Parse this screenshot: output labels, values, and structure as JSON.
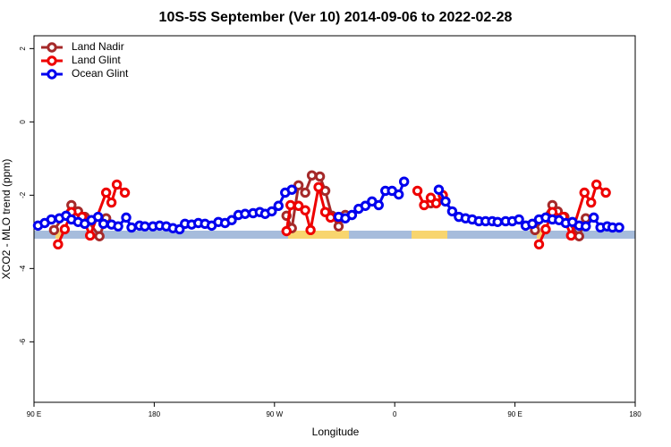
{
  "chart_data": {
    "type": "line",
    "title": "10S-5S September (Ver 10)   2014-09-06 to 2022-02-28",
    "x_label": "Longitude",
    "y_label": "XCO2 - MLO trend (ppm)",
    "xlim": [
      90,
      540
    ],
    "xticks": [
      {
        "value": 90,
        "label": "90 E"
      },
      180,
      {
        "value": 270,
        "label": "90 W"
      },
      {
        "value": 360,
        "label": "0"
      },
      {
        "value": 450,
        "label": "90 E"
      },
      {
        "value": 540,
        "label": "180"
      }
    ],
    "ylim": [
      -7.65,
      2.35
    ],
    "yticks": [
      2,
      0,
      -2,
      -4,
      -6
    ],
    "legend": "top-left",
    "series": [
      {
        "name": "Land Nadir",
        "color": "#a52a2a",
        "x": [
          105,
          118,
          123,
          128,
          139,
          144,
          null,
          279,
          283,
          288,
          293,
          298,
          304,
          308,
          313,
          318,
          323,
          null,
          387,
          null,
          465,
          478,
          482,
          487,
          498,
          503
        ],
        "values": [
          -2.95,
          -2.27,
          -2.44,
          -2.59,
          -3.12,
          -2.63,
          null,
          -2.56,
          -2.9,
          -1.73,
          -1.93,
          -1.46,
          -1.49,
          -1.88,
          -2.56,
          -2.85,
          -2.54,
          null,
          -2.22,
          null,
          -2.95,
          -2.27,
          -2.44,
          -2.59,
          -3.12,
          -2.63
        ]
      },
      {
        "name": "Land Glint",
        "color": "#ee0000",
        "x": [
          108,
          113,
          118,
          126,
          132,
          144,
          148,
          152,
          158,
          null,
          279,
          282,
          288,
          293,
          297,
          303,
          308,
          312,
          318,
          null,
          377,
          382,
          387,
          391,
          396,
          null,
          468,
          473,
          478,
          486,
          492,
          502,
          507,
          511,
          518
        ],
        "values": [
          -3.34,
          -2.93,
          -2.46,
          -2.59,
          -3.1,
          -1.93,
          -2.2,
          -1.71,
          -1.93,
          null,
          -2.98,
          -2.27,
          -2.29,
          -2.41,
          -2.95,
          -1.78,
          -2.46,
          -2.61,
          -2.61,
          null,
          -1.88,
          -2.27,
          -2.07,
          -2.22,
          -2.0,
          null,
          -3.34,
          -2.93,
          -2.46,
          -2.59,
          -3.1,
          -1.93,
          -2.2,
          -1.71,
          -1.93
        ]
      },
      {
        "name": "Ocean Glint",
        "color": "#0000ee",
        "x": [
          93,
          98,
          103,
          109,
          114,
          118,
          123,
          128,
          133,
          138,
          142,
          148,
          153,
          159,
          163,
          169,
          173,
          179,
          184,
          189,
          194,
          199,
          203,
          208,
          213,
          218,
          223,
          228,
          233,
          238,
          243,
          248,
          254,
          259,
          263,
          268,
          273,
          278,
          283,
          null,
          318,
          323,
          328,
          333,
          338,
          343,
          348,
          353,
          358,
          363,
          367,
          null,
          393,
          398,
          403,
          408,
          413,
          418,
          423,
          428,
          433,
          437,
          443,
          448,
          453,
          458,
          463,
          468,
          473,
          478,
          483,
          488,
          493,
          498,
          503,
          509,
          514,
          519,
          523,
          528
        ],
        "values": [
          -2.83,
          -2.76,
          -2.66,
          -2.63,
          -2.56,
          -2.66,
          -2.73,
          -2.78,
          -2.68,
          -2.59,
          -2.78,
          -2.8,
          -2.85,
          -2.61,
          -2.88,
          -2.83,
          -2.85,
          -2.85,
          -2.83,
          -2.85,
          -2.9,
          -2.93,
          -2.78,
          -2.8,
          -2.76,
          -2.78,
          -2.83,
          -2.73,
          -2.76,
          -2.68,
          -2.54,
          -2.51,
          -2.49,
          -2.46,
          -2.51,
          -2.44,
          -2.29,
          -1.93,
          -1.85,
          null,
          -2.59,
          -2.63,
          -2.54,
          -2.37,
          -2.29,
          -2.17,
          -2.27,
          -1.88,
          -1.88,
          -1.98,
          -1.63,
          null,
          -1.85,
          -2.17,
          -2.44,
          -2.59,
          -2.63,
          -2.66,
          -2.71,
          -2.71,
          -2.71,
          -2.73,
          -2.71,
          -2.71,
          -2.66,
          -2.83,
          -2.78,
          -2.66,
          -2.61,
          -2.66,
          -2.68,
          -2.76,
          -2.73,
          -2.83,
          -2.85,
          -2.61,
          -2.88,
          -2.85,
          -2.88,
          -2.88
        ]
      }
    ]
  }
}
